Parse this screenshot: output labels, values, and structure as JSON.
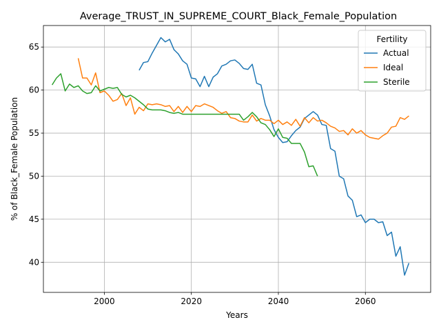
{
  "chart_data": {
    "type": "line",
    "title": "Average_TRUST_IN_SUPREME_COURT_Black_Female_Population",
    "xlabel": "Years",
    "ylabel": "% of Black_Female Population",
    "xlim": [
      1986,
      2075
    ],
    "ylim": [
      36.5,
      67.5
    ],
    "x_ticks": [
      2000,
      2020,
      2040,
      2060
    ],
    "y_ticks": [
      40,
      45,
      50,
      55,
      60,
      65
    ],
    "grid": true,
    "legend": {
      "title": "Fertility",
      "placement": "top-right"
    },
    "series": [
      {
        "name": "Actual",
        "color": "#1f77b4",
        "x": [
          2008,
          2009,
          2010,
          2011,
          2012,
          2013,
          2014,
          2015,
          2016,
          2017,
          2018,
          2019,
          2020,
          2021,
          2022,
          2023,
          2024,
          2025,
          2026,
          2027,
          2028,
          2029,
          2030,
          2031,
          2032,
          2033,
          2034,
          2035,
          2036,
          2037,
          2038,
          2039,
          2040,
          2041,
          2042,
          2043,
          2044,
          2045,
          2046,
          2047,
          2048,
          2049,
          2050,
          2051,
          2052,
          2053,
          2054,
          2055,
          2056,
          2057,
          2058,
          2059,
          2060,
          2061,
          2062,
          2063,
          2064,
          2065,
          2066,
          2067,
          2068,
          2069,
          2070
        ],
        "values": [
          62.3,
          63.2,
          63.3,
          64.3,
          65.2,
          66.1,
          65.6,
          65.9,
          64.7,
          64.2,
          63.4,
          63.0,
          61.4,
          61.3,
          60.4,
          61.6,
          60.4,
          61.5,
          61.9,
          62.8,
          63.0,
          63.4,
          63.5,
          63.1,
          62.5,
          62.4,
          63.0,
          60.8,
          60.6,
          58.3,
          57.0,
          55.4,
          54.5,
          53.9,
          54.0,
          54.7,
          55.3,
          55.7,
          56.7,
          57.1,
          57.5,
          57.1,
          56.0,
          55.9,
          53.2,
          52.9,
          50.0,
          49.7,
          47.7,
          47.2,
          45.3,
          45.5,
          44.6,
          45.0,
          45.0,
          44.6,
          44.7,
          43.1,
          43.5,
          40.7,
          41.8,
          38.5,
          39.9
        ]
      },
      {
        "name": "Ideal",
        "color": "#ff7f0e",
        "x": [
          1994,
          1995,
          1996,
          1997,
          1998,
          1999,
          2000,
          2001,
          2002,
          2003,
          2004,
          2005,
          2006,
          2007,
          2008,
          2009,
          2010,
          2011,
          2012,
          2013,
          2014,
          2015,
          2016,
          2017,
          2018,
          2019,
          2020,
          2021,
          2022,
          2023,
          2024,
          2025,
          2026,
          2027,
          2028,
          2029,
          2030,
          2031,
          2032,
          2033,
          2034,
          2035,
          2036,
          2037,
          2038,
          2039,
          2040,
          2041,
          2042,
          2043,
          2044,
          2045,
          2046,
          2047,
          2048,
          2049,
          2050,
          2051,
          2052,
          2053,
          2054,
          2055,
          2056,
          2057,
          2058,
          2059,
          2060,
          2061,
          2062,
          2063,
          2064,
          2065,
          2066,
          2067,
          2068,
          2069,
          2070
        ],
        "values": [
          63.7,
          61.4,
          61.4,
          60.6,
          62.0,
          59.7,
          59.9,
          59.4,
          58.7,
          58.9,
          59.6,
          58.2,
          59.1,
          57.2,
          58.0,
          57.6,
          58.4,
          58.3,
          58.4,
          58.3,
          58.1,
          58.2,
          57.5,
          58.1,
          57.4,
          58.1,
          57.5,
          58.2,
          58.1,
          58.4,
          58.2,
          58.0,
          57.6,
          57.3,
          57.5,
          56.8,
          56.7,
          56.4,
          56.3,
          56.3,
          57.1,
          56.4,
          56.7,
          56.5,
          56.5,
          56.1,
          56.5,
          56.0,
          56.3,
          55.9,
          56.6,
          55.8,
          56.8,
          56.2,
          56.8,
          56.4,
          56.5,
          56.2,
          55.8,
          55.6,
          55.2,
          55.3,
          54.8,
          55.5,
          55.0,
          55.3,
          54.8,
          54.5,
          54.4,
          54.3,
          54.7,
          55.0,
          55.7,
          55.8,
          56.8,
          56.6,
          57.0
        ]
      },
      {
        "name": "Sterile",
        "color": "#2ca02c",
        "x": [
          1988,
          1989,
          1990,
          1991,
          1992,
          1993,
          1994,
          1995,
          1996,
          1997,
          1998,
          1999,
          2000,
          2001,
          2002,
          2003,
          2004,
          2005,
          2006,
          2007,
          2008,
          2009,
          2010,
          2011,
          2012,
          2013,
          2014,
          2015,
          2016,
          2017,
          2018,
          2019,
          2020,
          2021,
          2022,
          2023,
          2024,
          2025,
          2026,
          2027,
          2028,
          2029,
          2030,
          2031,
          2032,
          2033,
          2034,
          2035,
          2036,
          2037,
          2038,
          2039,
          2040,
          2041,
          2042,
          2043,
          2044,
          2045,
          2046,
          2047,
          2048,
          2049
        ],
        "values": [
          60.6,
          61.4,
          61.9,
          59.9,
          60.7,
          60.3,
          60.5,
          59.9,
          59.6,
          59.7,
          60.5,
          59.9,
          60.1,
          60.3,
          60.2,
          60.3,
          59.5,
          59.2,
          59.4,
          59.1,
          58.7,
          58.3,
          57.8,
          57.7,
          57.7,
          57.7,
          57.6,
          57.4,
          57.3,
          57.4,
          57.2,
          57.2,
          57.2,
          57.2,
          57.2,
          57.2,
          57.2,
          57.2,
          57.2,
          57.2,
          57.2,
          57.2,
          57.2,
          57.2,
          56.5,
          56.9,
          57.4,
          56.9,
          56.2,
          56.0,
          55.4,
          54.6,
          55.5,
          54.5,
          54.4,
          53.8,
          53.8,
          53.8,
          52.8,
          51.1,
          51.2,
          50.0
        ]
      }
    ]
  }
}
